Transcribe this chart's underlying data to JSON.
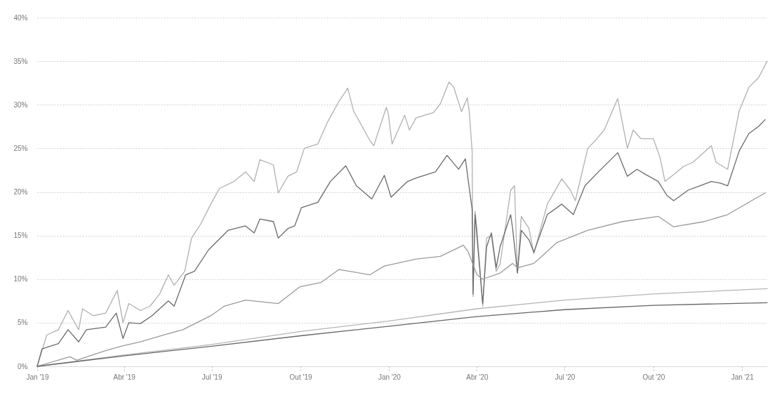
{
  "chart_data": {
    "type": "line",
    "grid": "y",
    "xlim": [
      "2019-01-01",
      "2021-01-27"
    ],
    "ylim": [
      0,
      40
    ],
    "xticks": [
      {
        "value": "2019-01-01",
        "label": "Jan '19"
      },
      {
        "value": "2019-04-01",
        "label": "Abr '19"
      },
      {
        "value": "2019-07-01",
        "label": "Jul '19"
      },
      {
        "value": "2019-10-01",
        "label": "Out '19"
      },
      {
        "value": "2020-01-01",
        "label": "Jan '20"
      },
      {
        "value": "2020-04-01",
        "label": "Abr '20"
      },
      {
        "value": "2020-07-01",
        "label": "Jul '20"
      },
      {
        "value": "2020-10-01",
        "label": "Out '20"
      },
      {
        "value": "2021-01-01",
        "label": "Jan '21"
      }
    ],
    "yticks": [
      {
        "value": 0,
        "label": "0%"
      },
      {
        "value": 5,
        "label": "5%"
      },
      {
        "value": 10,
        "label": "10%"
      },
      {
        "value": 15,
        "label": "15%"
      },
      {
        "value": 20,
        "label": "20%"
      },
      {
        "value": 25,
        "label": "25%"
      },
      {
        "value": 30,
        "label": "30%"
      },
      {
        "value": 35,
        "label": "35%"
      },
      {
        "value": 40,
        "label": "40%"
      }
    ],
    "series": [
      {
        "color": "#b0b0b0",
        "x": [
          "2019-01-01",
          "2019-01-11",
          "2019-01-23",
          "2019-02-02",
          "2019-02-13",
          "2019-02-17",
          "2019-02-28",
          "2019-03-13",
          "2019-03-25",
          "2019-03-31",
          "2019-04-06",
          "2019-04-18",
          "2019-04-28",
          "2019-05-08",
          "2019-05-17",
          "2019-05-23",
          "2019-06-03",
          "2019-06-10",
          "2019-06-20",
          "2019-06-30",
          "2019-07-09",
          "2019-07-24",
          "2019-08-05",
          "2019-08-14",
          "2019-08-20",
          "2019-09-03",
          "2019-09-08",
          "2019-09-18",
          "2019-09-27",
          "2019-10-05",
          "2019-10-19",
          "2019-10-29",
          "2019-11-10",
          "2019-11-19",
          "2019-11-25",
          "2019-12-12",
          "2019-12-16",
          "2019-12-29",
          "2019-12-31",
          "2020-01-04",
          "2020-01-17",
          "2020-01-22",
          "2020-01-29",
          "2020-02-16",
          "2020-02-23",
          "2020-03-03",
          "2020-03-08",
          "2020-03-16",
          "2020-03-22",
          "2020-03-24",
          "2020-03-27",
          "2020-03-28",
          "2020-03-30",
          "2020-04-01",
          "2020-04-07",
          "2020-04-11",
          "2020-04-16",
          "2020-04-21",
          "2020-04-25",
          "2020-05-06",
          "2020-05-10",
          "2020-05-13",
          "2020-05-17",
          "2020-05-25",
          "2020-05-30",
          "2020-06-13",
          "2020-06-28",
          "2020-07-07",
          "2020-07-12",
          "2020-07-25",
          "2020-08-01",
          "2020-08-11",
          "2020-08-25",
          "2020-09-04",
          "2020-09-10",
          "2020-09-18",
          "2020-10-01",
          "2020-10-08",
          "2020-10-13",
          "2020-10-22",
          "2020-11-01",
          "2020-11-11",
          "2020-11-30",
          "2020-12-05",
          "2020-12-17",
          "2020-12-29",
          "2021-01-08",
          "2021-01-18",
          "2021-01-27"
        ],
        "values": [
          0,
          3.6,
          4.2,
          6.4,
          4.2,
          6.6,
          5.8,
          6.1,
          8.7,
          5.0,
          7.2,
          6.4,
          6.9,
          8.3,
          10.5,
          9.3,
          10.9,
          14.7,
          16.4,
          18.6,
          20.4,
          21.2,
          22.3,
          21.2,
          23.7,
          23.1,
          19.9,
          21.8,
          22.3,
          25.0,
          25.5,
          28.0,
          30.4,
          31.9,
          29.3,
          25.9,
          25.3,
          29.7,
          29.0,
          25.5,
          28.8,
          27.1,
          28.5,
          29.1,
          30.1,
          32.6,
          32.0,
          29.2,
          30.8,
          29.3,
          24.7,
          8.0,
          17.8,
          15.8,
          6.9,
          14.7,
          15.0,
          10.9,
          11.7,
          20.2,
          20.7,
          10.7,
          17.2,
          15.8,
          12.9,
          18.6,
          21.5,
          20.2,
          19.0,
          25.0,
          25.8,
          27.1,
          30.7,
          25.0,
          27.1,
          26.1,
          26.1,
          23.9,
          21.2,
          22.0,
          22.9,
          23.4,
          25.3,
          23.4,
          22.6,
          29.3,
          32.0,
          33.1,
          35.0
        ]
      },
      {
        "color": "#6a6a6a",
        "x": [
          "2019-01-01",
          "2019-01-06",
          "2019-01-23",
          "2019-02-02",
          "2019-02-13",
          "2019-02-21",
          "2019-03-13",
          "2019-03-24",
          "2019-03-31",
          "2019-04-06",
          "2019-04-18",
          "2019-04-30",
          "2019-05-17",
          "2019-05-23",
          "2019-06-04",
          "2019-06-13",
          "2019-06-28",
          "2019-07-18",
          "2019-08-05",
          "2019-08-14",
          "2019-08-20",
          "2019-09-03",
          "2019-09-08",
          "2019-09-18",
          "2019-09-25",
          "2019-10-02",
          "2019-10-19",
          "2019-11-01",
          "2019-11-17",
          "2019-11-28",
          "2019-12-14",
          "2019-12-27",
          "2020-01-03",
          "2020-01-20",
          "2020-01-29",
          "2020-02-18",
          "2020-03-01",
          "2020-03-13",
          "2020-03-20",
          "2020-03-27",
          "2020-03-28",
          "2020-03-30",
          "2020-04-07",
          "2020-04-11",
          "2020-04-16",
          "2020-04-21",
          "2020-04-25",
          "2020-05-06",
          "2020-05-08",
          "2020-05-13",
          "2020-05-17",
          "2020-05-25",
          "2020-05-30",
          "2020-06-13",
          "2020-06-28",
          "2020-07-10",
          "2020-07-22",
          "2020-08-05",
          "2020-08-25",
          "2020-09-04",
          "2020-09-14",
          "2020-09-23",
          "2020-10-06",
          "2020-10-15",
          "2020-10-22",
          "2020-11-06",
          "2020-11-18",
          "2020-11-30",
          "2020-12-10",
          "2020-12-17",
          "2020-12-29",
          "2021-01-08",
          "2021-01-18",
          "2021-01-25"
        ],
        "values": [
          0,
          2.0,
          2.6,
          4.2,
          2.8,
          4.2,
          4.5,
          6.1,
          3.2,
          5.0,
          4.9,
          5.8,
          7.5,
          6.9,
          10.5,
          10.9,
          13.4,
          15.6,
          16.1,
          15.3,
          16.9,
          16.6,
          14.7,
          15.8,
          16.1,
          18.2,
          18.8,
          21.2,
          23.0,
          20.7,
          19.2,
          21.9,
          19.4,
          21.2,
          21.6,
          22.3,
          24.2,
          22.6,
          23.8,
          18.0,
          8.3,
          17.4,
          7.2,
          13.7,
          15.3,
          11.3,
          13.7,
          17.4,
          15.8,
          10.7,
          15.6,
          14.5,
          13.1,
          17.4,
          18.6,
          17.4,
          20.7,
          22.3,
          24.5,
          21.8,
          22.6,
          22.0,
          21.2,
          19.6,
          19.0,
          20.2,
          20.7,
          21.2,
          21.0,
          20.7,
          24.7,
          26.7,
          27.5,
          28.3
        ]
      },
      {
        "color": "#9a9a9a",
        "x": [
          "2019-01-01",
          "2019-02-04",
          "2019-02-11",
          "2019-03-13",
          "2019-03-29",
          "2019-04-18",
          "2019-05-12",
          "2019-06-01",
          "2019-06-30",
          "2019-07-14",
          "2019-08-05",
          "2019-09-08",
          "2019-09-30",
          "2019-10-22",
          "2019-11-10",
          "2019-12-12",
          "2019-12-27",
          "2020-01-29",
          "2020-02-23",
          "2020-03-18",
          "2020-03-23",
          "2020-04-01",
          "2020-04-07",
          "2020-04-25",
          "2020-05-08",
          "2020-05-13",
          "2020-05-30",
          "2020-06-23",
          "2020-07-25",
          "2020-08-30",
          "2020-10-06",
          "2020-10-22",
          "2020-11-23",
          "2020-12-17",
          "2021-01-25"
        ],
        "values": [
          0,
          1.1,
          0.7,
          1.8,
          2.3,
          2.8,
          3.6,
          4.2,
          5.8,
          6.9,
          7.6,
          7.2,
          9.1,
          9.6,
          11.1,
          10.5,
          11.5,
          12.3,
          12.6,
          13.9,
          13.1,
          10.5,
          10.0,
          10.7,
          11.8,
          11.3,
          11.8,
          14.2,
          15.6,
          16.6,
          17.2,
          16.0,
          16.6,
          17.4,
          19.9
        ]
      },
      {
        "color": "#b5b5b5",
        "x": [
          "2019-01-01",
          "2019-04-01",
          "2019-07-01",
          "2019-10-01",
          "2020-01-01",
          "2020-04-01",
          "2020-07-01",
          "2020-10-01",
          "2021-01-27"
        ],
        "values": [
          0,
          1.3,
          2.5,
          4.0,
          5.2,
          6.6,
          7.6,
          8.3,
          8.9
        ]
      },
      {
        "color": "#666666",
        "x": [
          "2019-01-01",
          "2019-04-01",
          "2019-07-01",
          "2019-10-01",
          "2020-01-01",
          "2020-04-01",
          "2020-07-01",
          "2020-10-01",
          "2021-01-27"
        ],
        "values": [
          0,
          1.2,
          2.3,
          3.5,
          4.6,
          5.7,
          6.5,
          7.0,
          7.3
        ]
      }
    ]
  }
}
